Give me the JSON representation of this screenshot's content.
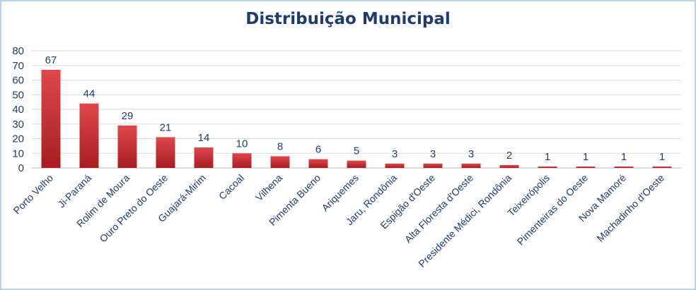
{
  "chart_data": {
    "type": "bar",
    "title": "Distribuição Municipal",
    "xlabel": "",
    "ylabel": "",
    "ylim": [
      0,
      80
    ],
    "yticks": [
      0,
      10,
      20,
      30,
      40,
      50,
      60,
      70,
      80
    ],
    "grid": true,
    "legend": "none",
    "bar_color": "#c0282b",
    "categories": [
      "Porto Velho",
      "Ji-Paraná",
      "Rolim de Moura",
      "Ouro Preto do Oeste",
      "Guajará-Mirim",
      "Cacoal",
      "Vilhena",
      "Pimenta Bueno",
      "Ariquemes",
      "Jaru, Rondônia",
      "Espigão d'Oeste",
      "Alta Floresta d'Oeste",
      "Presidente Médici, Rondônia",
      "Teixeirópolis",
      "Pimenteiras do Oeste",
      "Nova Mamoré",
      "Machadinho d'Oeste"
    ],
    "values": [
      67,
      44,
      29,
      21,
      14,
      10,
      8,
      6,
      5,
      3,
      3,
      3,
      2,
      1,
      1,
      1,
      1
    ]
  }
}
